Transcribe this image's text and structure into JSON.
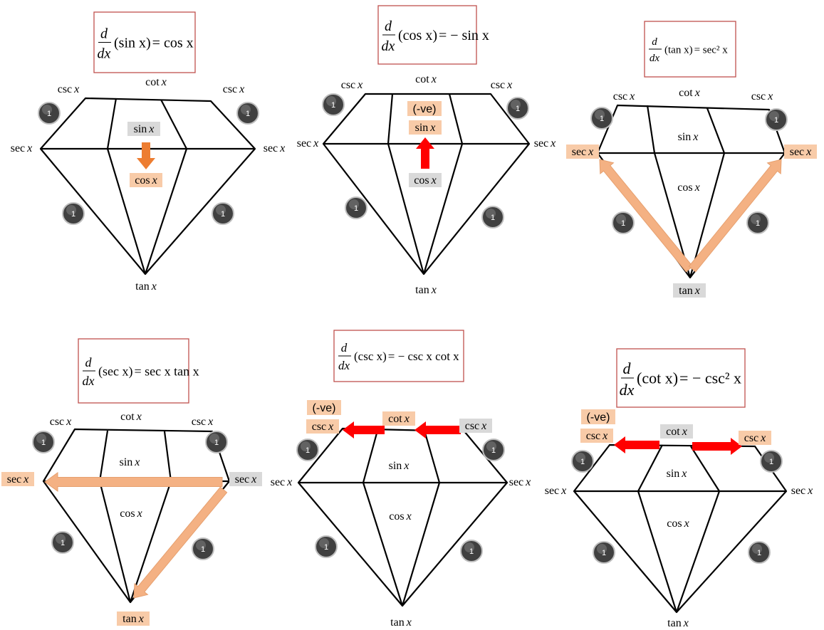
{
  "badge_text": "1",
  "colors": {
    "highlight_orange": "#f8cba8",
    "highlight_gray": "#d9d9d9",
    "arrow_orange": "#f4b183",
    "arrow_orange_dark": "#ed7d31",
    "arrow_red": "#ff0000",
    "formula_border": "#c0504d",
    "badge_fill": "#404040"
  },
  "panels": [
    {
      "formula": {
        "lhs": "(sin x)",
        "rhs": "= cos x"
      },
      "labels": {
        "top_left": "csc x",
        "top": "cot x",
        "top_right": "csc x",
        "left": "sec x",
        "right": "sec x",
        "inner_top": "sin x",
        "inner_bottom": "cos x",
        "bottom": "tan x"
      },
      "negative": ""
    },
    {
      "formula": {
        "lhs": "(cos x)",
        "rhs": "= − sin x"
      },
      "labels": {
        "top_left": "csc x",
        "top": "cot x",
        "top_right": "csc x",
        "left": "sec x",
        "right": "sec x",
        "inner_top": "sin x",
        "inner_bottom": "cos x",
        "bottom": "tan x"
      },
      "negative": "(-ve)"
    },
    {
      "formula": {
        "lhs": "(tan x)",
        "rhs": "= sec² x"
      },
      "labels": {
        "top_left": "csc x",
        "top": "cot x",
        "top_right": "csc x",
        "left": "sec x",
        "right": "sec x",
        "inner_top": "sin x",
        "inner_bottom": "cos x",
        "bottom": "tan x"
      },
      "negative": ""
    },
    {
      "formula": {
        "lhs": "(sec x)",
        "rhs": "= sec x tan x"
      },
      "labels": {
        "top_left": "csc x",
        "top": "cot x",
        "top_right": "csc x",
        "left": "sec x",
        "right": "sec x",
        "inner_top": "sin x",
        "inner_bottom": "cos x",
        "bottom": "tan x"
      },
      "negative": ""
    },
    {
      "formula": {
        "lhs": "(csc x)",
        "rhs": "= − csc x cot x"
      },
      "labels": {
        "top_left": "csc x",
        "top": "cot x",
        "top_right": "csc x",
        "left": "sec x",
        "right": "sec x",
        "inner_top": "sin x",
        "inner_bottom": "cos x",
        "bottom": "tan x"
      },
      "negative": "(-ve)"
    },
    {
      "formula": {
        "lhs": "(cot x)",
        "rhs": "= − csc² x"
      },
      "labels": {
        "top_left": "csc x",
        "top": "cot x",
        "top_right": "csc x",
        "left": "sec x",
        "right": "sec x",
        "inner_top": "sin x",
        "inner_bottom": "cos x",
        "bottom": "tan x"
      },
      "negative": "(-ve)"
    }
  ]
}
